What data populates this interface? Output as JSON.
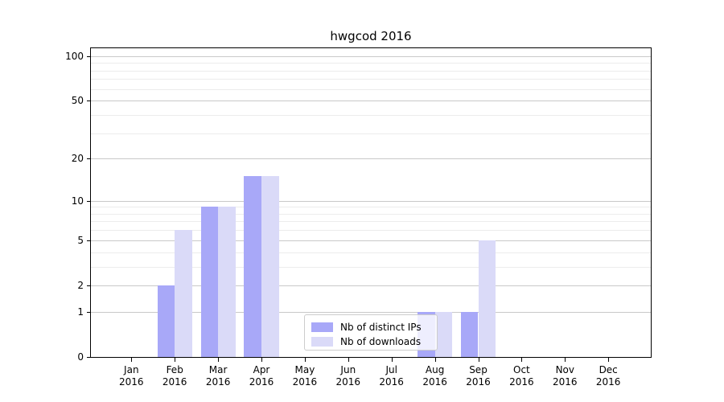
{
  "chart_data": {
    "type": "bar",
    "title": "hwgcod 2016",
    "categories": [
      "Jan",
      "Feb",
      "Mar",
      "Apr",
      "May",
      "Jun",
      "Jul",
      "Aug",
      "Sep",
      "Oct",
      "Nov",
      "Dec"
    ],
    "category_year": "2016",
    "series": [
      {
        "name": "Nb of distinct IPs",
        "color": "#a8a8f8",
        "values": [
          0,
          2,
          9,
          15,
          0,
          0,
          0,
          1,
          1,
          0,
          0,
          0
        ]
      },
      {
        "name": "Nb of downloads",
        "color": "#dadaf8",
        "values": [
          0,
          6,
          9,
          15,
          0,
          0,
          0,
          1,
          5,
          0,
          0,
          0
        ]
      }
    ],
    "xlabel": "",
    "ylabel": "",
    "yscale": "log1p",
    "ylim": [
      0,
      113
    ],
    "yticks": [
      0,
      1,
      2,
      5,
      10,
      20,
      50,
      100
    ],
    "yticks_minor": [
      3,
      4,
      6,
      7,
      8,
      9,
      30,
      40,
      60,
      70,
      80,
      90
    ],
    "grid": true,
    "legend_position": "lower-center"
  },
  "colors": {
    "major_grid": "#c9c9c9",
    "minor_grid": "#ececec",
    "spine": "#000000",
    "text": "#000000",
    "legend_border": "#cccccc"
  }
}
